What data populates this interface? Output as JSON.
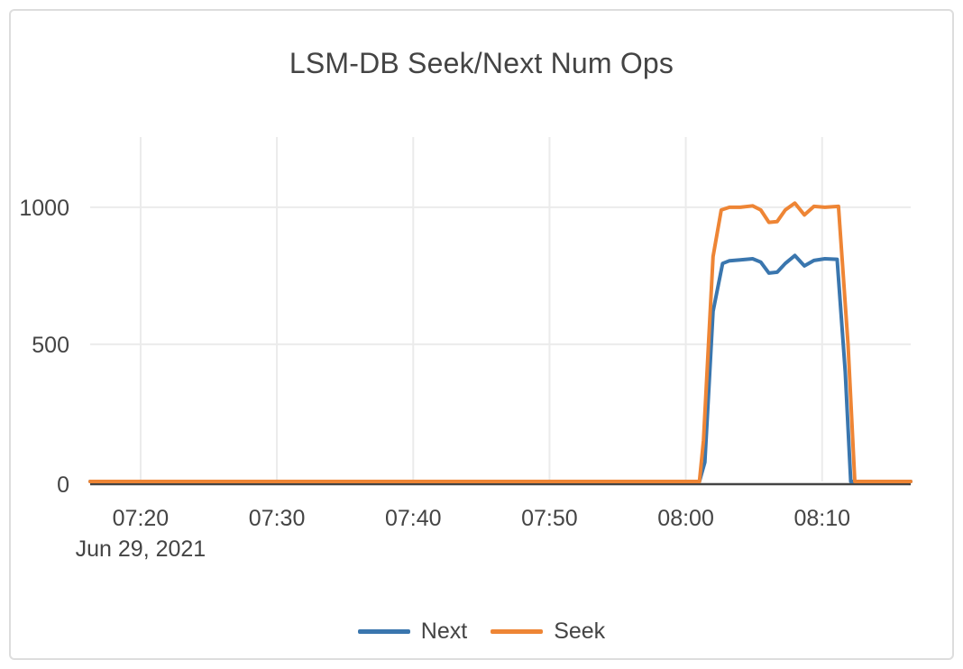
{
  "colors": {
    "text": "#444444",
    "grid": "#ebebeb",
    "zeroline": "#444444",
    "card_border": "#dddddd",
    "background": "#ffffff",
    "series_next": "#3a76ae",
    "series_seek": "#ee8535"
  },
  "chart_data": {
    "type": "line",
    "title": "LSM-DB Seek/Next Num Ops",
    "legend_position": "bottom",
    "grid": true,
    "x_axis": {
      "date_label": "Jun 29, 2021",
      "unit": "minutes since 07:00 on Jun 29, 2021",
      "range": [
        16.3,
        76.5
      ],
      "tick_values": [
        20,
        30,
        40,
        50,
        60,
        70
      ],
      "tick_labels": [
        "07:20",
        "07:30",
        "07:40",
        "07:50",
        "08:00",
        "08:10"
      ]
    },
    "y_axis": {
      "range": [
        0,
        1256
      ],
      "tick_values": [
        0,
        500,
        1000
      ],
      "tick_labels": [
        "0",
        "500",
        "1000"
      ],
      "gridline_values": [
        500,
        1000
      ]
    },
    "series": [
      {
        "name": "Next",
        "color": "#3a76ae",
        "points": [
          [
            16.3,
            0
          ],
          [
            20,
            0
          ],
          [
            25,
            0
          ],
          [
            30,
            0
          ],
          [
            35,
            0
          ],
          [
            40,
            0
          ],
          [
            45,
            0
          ],
          [
            50,
            0
          ],
          [
            55,
            0
          ],
          [
            60,
            0
          ],
          [
            61,
            0
          ],
          [
            61.4,
            70
          ],
          [
            62,
            620
          ],
          [
            62.7,
            795
          ],
          [
            63.2,
            805
          ],
          [
            64,
            808
          ],
          [
            64.9,
            812
          ],
          [
            65.5,
            800
          ],
          [
            66.1,
            760
          ],
          [
            66.7,
            763
          ],
          [
            67.3,
            795
          ],
          [
            68,
            824
          ],
          [
            68.7,
            786
          ],
          [
            69.4,
            806
          ],
          [
            70.2,
            812
          ],
          [
            71.1,
            810
          ],
          [
            71.7,
            400
          ],
          [
            72.1,
            0
          ],
          [
            73,
            0
          ],
          [
            74.5,
            0
          ],
          [
            76.5,
            0
          ]
        ]
      },
      {
        "name": "Seek",
        "color": "#ee8535",
        "points": [
          [
            16.3,
            0
          ],
          [
            20,
            0
          ],
          [
            25,
            0
          ],
          [
            30,
            0
          ],
          [
            35,
            0
          ],
          [
            40,
            0
          ],
          [
            45,
            0
          ],
          [
            50,
            0
          ],
          [
            55,
            0
          ],
          [
            60,
            0
          ],
          [
            61,
            0
          ],
          [
            61.3,
            150
          ],
          [
            62,
            820
          ],
          [
            62.6,
            990
          ],
          [
            63.2,
            1000
          ],
          [
            64,
            1000
          ],
          [
            64.9,
            1005
          ],
          [
            65.5,
            990
          ],
          [
            66.1,
            945
          ],
          [
            66.7,
            948
          ],
          [
            67.3,
            990
          ],
          [
            68,
            1015
          ],
          [
            68.7,
            972
          ],
          [
            69.4,
            1003
          ],
          [
            70.2,
            1000
          ],
          [
            71.2,
            1003
          ],
          [
            71.9,
            500
          ],
          [
            72.4,
            0
          ],
          [
            73,
            0
          ],
          [
            74.5,
            0
          ],
          [
            76.5,
            0
          ]
        ]
      }
    ]
  }
}
